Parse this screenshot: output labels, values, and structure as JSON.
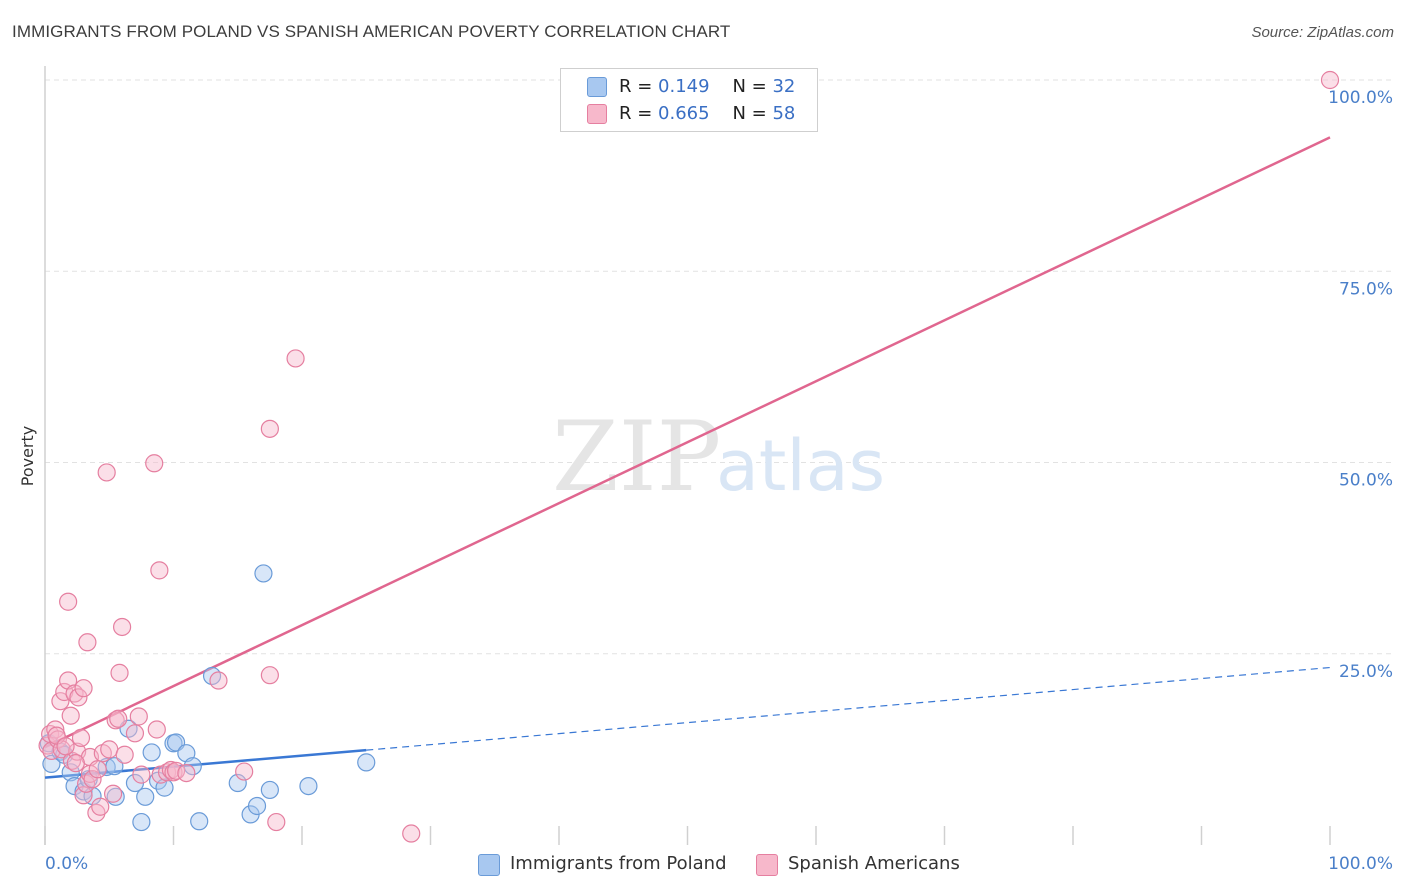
{
  "title": "IMMIGRANTS FROM POLAND VS SPANISH AMERICAN POVERTY CORRELATION CHART",
  "source": "Source: ZipAtlas.com",
  "watermark": {
    "zip": "ZIP",
    "atlas": "atlas"
  },
  "legend": {
    "rows": [
      {
        "r_label": "R =",
        "r_value": "0.149",
        "n_label": "N =",
        "n_value": "32",
        "color": "#a8c8f0",
        "border": "#6a9bd8"
      },
      {
        "r_label": "R =",
        "r_value": "0.665",
        "n_label": "N =",
        "n_value": "58",
        "color": "#f7b8cb",
        "border": "#e57fa0"
      }
    ]
  },
  "bottom_legend": {
    "poland": "Immigrants from Poland",
    "spanish": "Spanish Americans"
  },
  "chart_data": {
    "type": "scatter",
    "title": "IMMIGRANTS FROM POLAND VS SPANISH AMERICAN POVERTY CORRELATION CHART",
    "xlabel": "",
    "ylabel": "Poverty",
    "xlim": [
      0,
      100
    ],
    "ylim": [
      0,
      100
    ],
    "x_tick_labels": [
      "0.0%",
      "100.0%"
    ],
    "y_ticks": [
      25,
      50,
      75,
      100
    ],
    "y_tick_labels": [
      "25.0%",
      "50.0%",
      "75.0%",
      "100.0%"
    ],
    "grid": true,
    "legend_position": "top-center",
    "series": [
      {
        "name": "Immigrants from Poland",
        "color": "#6a9bd8",
        "fill": "#a8c8f0",
        "trend": {
          "x": [
            0,
            25
          ],
          "y": [
            8.8,
            12.4
          ],
          "extended_to": [
            100,
            23.2
          ],
          "color": "#3a78d4"
        },
        "points": [
          [
            0.5,
            10.6
          ],
          [
            1.2,
            12.2
          ],
          [
            2.0,
            9.5
          ],
          [
            2.3,
            7.7
          ],
          [
            3.0,
            7.0
          ],
          [
            3.4,
            8.6
          ],
          [
            3.7,
            6.4
          ],
          [
            4.8,
            10.2
          ],
          [
            5.5,
            6.3
          ],
          [
            5.4,
            10.3
          ],
          [
            6.5,
            15.2
          ],
          [
            7.0,
            8.1
          ],
          [
            7.5,
            3.0
          ],
          [
            7.8,
            6.3
          ],
          [
            8.3,
            12.1
          ],
          [
            8.8,
            8.4
          ],
          [
            9.3,
            7.5
          ],
          [
            10.0,
            13.3
          ],
          [
            10.2,
            13.4
          ],
          [
            11.0,
            12.0
          ],
          [
            11.5,
            10.3
          ],
          [
            12.0,
            3.1
          ],
          [
            13.0,
            22.1
          ],
          [
            15.0,
            8.1
          ],
          [
            16.0,
            4.0
          ],
          [
            16.5,
            5.1
          ],
          [
            17.0,
            35.5
          ],
          [
            17.5,
            7.2
          ],
          [
            20.5,
            7.7
          ],
          [
            25.0,
            10.8
          ],
          [
            0.3,
            13.3
          ],
          [
            1.5,
            11.8
          ]
        ]
      },
      {
        "name": "Spanish Americans",
        "color": "#e57fa0",
        "fill": "#f7b8cb",
        "trend": {
          "x": [
            0,
            100
          ],
          "y": [
            12.8,
            92.5
          ],
          "color": "#e0668f"
        },
        "points": [
          [
            0.2,
            13.0
          ],
          [
            0.4,
            14.5
          ],
          [
            0.5,
            12.3
          ],
          [
            0.8,
            15.1
          ],
          [
            1.0,
            13.8
          ],
          [
            1.2,
            18.8
          ],
          [
            1.3,
            12.5
          ],
          [
            1.5,
            20.0
          ],
          [
            1.8,
            31.8
          ],
          [
            1.8,
            21.5
          ],
          [
            2.0,
            16.9
          ],
          [
            2.1,
            11.0
          ],
          [
            2.3,
            19.8
          ],
          [
            2.5,
            12.2
          ],
          [
            2.6,
            19.3
          ],
          [
            2.8,
            14.0
          ],
          [
            3.0,
            6.5
          ],
          [
            3.0,
            20.5
          ],
          [
            3.2,
            8.0
          ],
          [
            3.3,
            26.5
          ],
          [
            3.5,
            9.3
          ],
          [
            3.5,
            11.5
          ],
          [
            3.7,
            8.6
          ],
          [
            4.0,
            4.2
          ],
          [
            4.3,
            5.0
          ],
          [
            4.5,
            12.0
          ],
          [
            4.8,
            48.7
          ],
          [
            5.0,
            12.5
          ],
          [
            5.3,
            6.7
          ],
          [
            5.5,
            16.3
          ],
          [
            5.7,
            16.5
          ],
          [
            5.8,
            22.5
          ],
          [
            6.0,
            28.5
          ],
          [
            6.2,
            11.8
          ],
          [
            7.0,
            14.6
          ],
          [
            7.3,
            16.8
          ],
          [
            7.5,
            9.2
          ],
          [
            8.5,
            49.9
          ],
          [
            8.7,
            15.1
          ],
          [
            8.9,
            35.9
          ],
          [
            9.0,
            9.2
          ],
          [
            9.5,
            9.5
          ],
          [
            9.8,
            9.8
          ],
          [
            10.0,
            9.5
          ],
          [
            10.2,
            9.7
          ],
          [
            11.0,
            9.4
          ],
          [
            13.5,
            21.5
          ],
          [
            15.5,
            9.6
          ],
          [
            17.5,
            54.4
          ],
          [
            17.5,
            22.2
          ],
          [
            18.0,
            3.0
          ],
          [
            19.5,
            63.6
          ],
          [
            28.5,
            1.5
          ],
          [
            100.0,
            100.0
          ],
          [
            0.9,
            14.3
          ],
          [
            1.6,
            12.9
          ],
          [
            2.4,
            10.7
          ],
          [
            4.1,
            9.9
          ]
        ]
      }
    ]
  }
}
